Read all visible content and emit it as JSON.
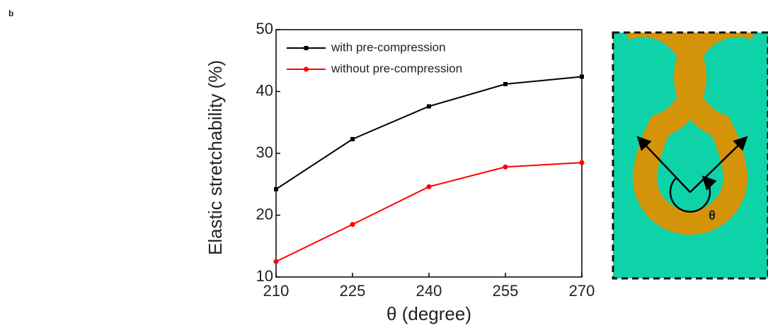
{
  "panel_label": "b",
  "chart_data": {
    "type": "line",
    "xlabel": "θ (degree)",
    "ylabel": "Elastic stretchability (%)",
    "x": [
      210,
      225,
      240,
      255,
      270
    ],
    "xlim": [
      210,
      270
    ],
    "xticks": [
      210,
      225,
      240,
      255,
      270
    ],
    "ylim": [
      10,
      50
    ],
    "yticks": [
      10,
      20,
      30,
      40,
      50
    ],
    "legend": "upper left",
    "series": [
      {
        "name": "with pre-compression",
        "color": "#000000",
        "marker": "square",
        "values": [
          24.2,
          32.3,
          37.6,
          41.2,
          42.4
        ]
      },
      {
        "name": "without pre-compression",
        "color": "#ff0000",
        "marker": "circle",
        "values": [
          12.5,
          18.5,
          24.6,
          27.8,
          28.5
        ]
      }
    ]
  },
  "diagram": {
    "angle_label": "θ"
  }
}
